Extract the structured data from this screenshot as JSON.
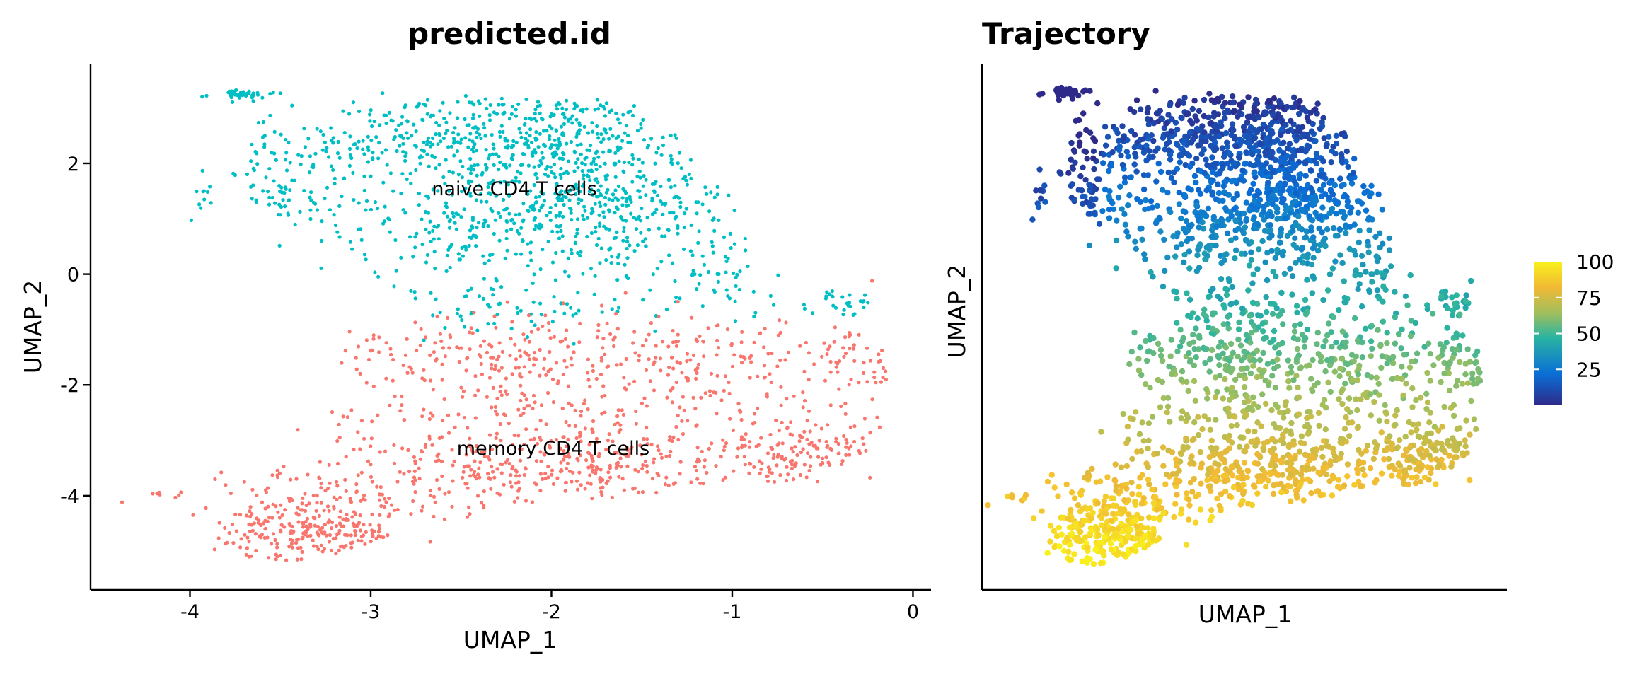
{
  "chart_data": [
    {
      "type": "scatter",
      "title": "predicted.id",
      "xlabel": "UMAP_1",
      "ylabel": "UMAP_2",
      "xlim": [
        -4.55,
        0.1
      ],
      "ylim": [
        -5.7,
        3.8
      ],
      "xticks": [
        -4,
        -3,
        -2,
        -1,
        0
      ],
      "yticks": [
        -4,
        -2,
        0,
        2
      ],
      "xtick_labels": [
        "-4",
        "-3",
        "-2",
        "-1",
        "0"
      ],
      "ytick_labels": [
        "-4",
        "-2",
        "0",
        "2"
      ],
      "grid": false,
      "legend": "none",
      "annotations": [
        {
          "text": "naive CD4 T cells",
          "x": -2.2,
          "y": 1.6
        },
        {
          "text": "memory CD4 T cells",
          "x": -2.0,
          "y": -3.1
        }
      ],
      "series": [
        {
          "color": "#00BFC4",
          "region": [
            [
              -3.1,
              3.3
            ],
            [
              -1.5,
              3.1
            ],
            [
              -1.0,
              1.6
            ],
            [
              -0.85,
              0.3
            ],
            [
              -0.15,
              -0.3
            ],
            [
              -0.2,
              -0.8
            ],
            [
              -1.0,
              -0.9
            ],
            [
              -1.6,
              -0.7
            ],
            [
              -2.6,
              -1.0
            ],
            [
              -3.1,
              0.3
            ],
            [
              -3.7,
              1.3
            ],
            [
              -3.8,
              3.3
            ]
          ],
          "clusters": [
            {
              "x": -3.8,
              "y": 3.25,
              "sx": 0.12,
              "sy": 0.07,
              "n": 45
            },
            {
              "x": -3.95,
              "y": 1.4,
              "sx": 0.07,
              "sy": 0.2,
              "n": 12
            },
            {
              "x": -3.5,
              "y": 1.6,
              "sx": 0.25,
              "sy": 0.6,
              "n": 110
            },
            {
              "x": -2.6,
              "y": 2.3,
              "sx": 0.35,
              "sy": 0.6,
              "n": 260
            },
            {
              "x": -1.9,
              "y": 2.3,
              "sx": 0.35,
              "sy": 0.7,
              "n": 380
            },
            {
              "x": -1.7,
              "y": 1.0,
              "sx": 0.35,
              "sy": 0.6,
              "n": 250
            },
            {
              "x": -2.5,
              "y": 0.6,
              "sx": 0.4,
              "sy": 0.5,
              "n": 140
            },
            {
              "x": -1.1,
              "y": 0.2,
              "sx": 0.2,
              "sy": 0.6,
              "n": 70
            },
            {
              "x": -0.4,
              "y": -0.5,
              "sx": 0.2,
              "sy": 0.15,
              "n": 30
            },
            {
              "x": -2.2,
              "y": -0.8,
              "sx": 0.5,
              "sy": 0.3,
              "n": 60
            }
          ]
        },
        {
          "color": "#F8766D",
          "region": [
            [
              -3.2,
              -0.5
            ],
            [
              -1.6,
              -0.3
            ],
            [
              -0.5,
              -0.6
            ],
            [
              -0.15,
              -0.8
            ],
            [
              -0.12,
              -3.1
            ],
            [
              -0.6,
              -3.7
            ],
            [
              -1.5,
              -4.0
            ],
            [
              -2.8,
              -4.6
            ],
            [
              -3.3,
              -5.2
            ],
            [
              -3.9,
              -5.1
            ],
            [
              -4.3,
              -4.0
            ],
            [
              -3.5,
              -3.2
            ],
            [
              -3.2,
              -1.8
            ]
          ],
          "clusters": [
            {
              "x": -2.2,
              "y": -1.5,
              "sx": 0.6,
              "sy": 0.4,
              "n": 220
            },
            {
              "x": -1.0,
              "y": -1.5,
              "sx": 0.4,
              "sy": 0.4,
              "n": 110
            },
            {
              "x": -2.0,
              "y": -2.7,
              "sx": 0.6,
              "sy": 0.45,
              "n": 200
            },
            {
              "x": -1.8,
              "y": -3.5,
              "sx": 0.45,
              "sy": 0.3,
              "n": 220
            },
            {
              "x": -0.6,
              "y": -3.2,
              "sx": 0.3,
              "sy": 0.35,
              "n": 150
            },
            {
              "x": -3.3,
              "y": -4.6,
              "sx": 0.28,
              "sy": 0.35,
              "n": 260
            },
            {
              "x": -2.9,
              "y": -3.8,
              "sx": 0.4,
              "sy": 0.5,
              "n": 120
            },
            {
              "x": -0.3,
              "y": -1.5,
              "sx": 0.12,
              "sy": 0.5,
              "n": 40
            },
            {
              "x": -4.1,
              "y": -4.0,
              "sx": 0.1,
              "sy": 0.1,
              "n": 8
            }
          ]
        }
      ]
    },
    {
      "type": "scatter",
      "title": "Trajectory",
      "xlabel": "UMAP_1",
      "ylabel": "UMAP_2",
      "xlim": [
        -4.55,
        0.1
      ],
      "ylim": [
        -5.7,
        3.8
      ],
      "grid": false,
      "legend": "right",
      "colorbar": {
        "ticks": [
          25,
          50,
          75,
          100
        ],
        "tick_labels": [
          "25",
          "50",
          "75",
          "100"
        ],
        "range": [
          0,
          100
        ],
        "colors": [
          "#2E2A89",
          "#0A6FD6",
          "#29B3A2",
          "#9FBF5E",
          "#F1B935",
          "#F9F11B"
        ]
      }
    }
  ]
}
